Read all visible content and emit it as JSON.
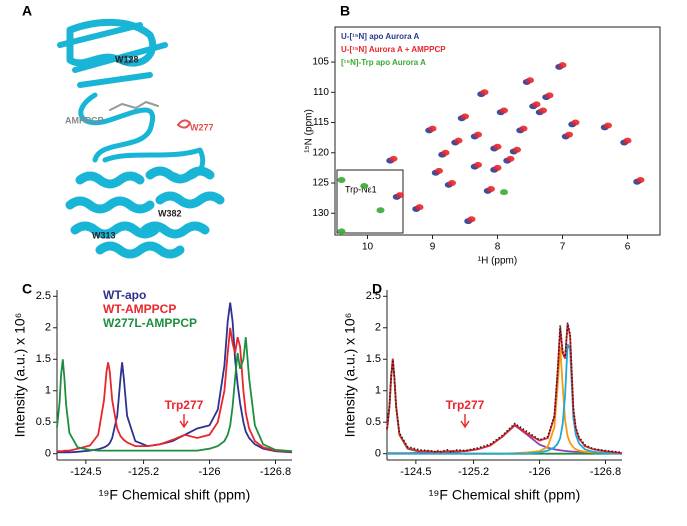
{
  "panel_labels": [
    "A",
    "B",
    "C",
    "D"
  ],
  "structure": {
    "labels": [
      "W128",
      "AMPPCP",
      "W277",
      "W382",
      "W313"
    ]
  },
  "chart_data": [
    {
      "type": "scatter",
      "xlabel": "¹H (ppm)",
      "ylabel": "¹⁵N (ppm)",
      "inset_label": "Trp-Nε1",
      "xlim": [
        10.5,
        5.5
      ],
      "xticks": [
        10,
        9,
        8,
        7,
        6
      ],
      "ylim": [
        133.6,
        99.2
      ],
      "yticks": [
        105,
        110,
        115,
        120,
        125,
        130
      ],
      "legend": "upper left",
      "series": [
        {
          "name": "U-[¹⁵N] apo Aurora A",
          "color": "#2b3a8f",
          "x": [
            7.05,
            7.55,
            8.25,
            7.35,
            6.85,
            6.35,
            6.95,
            9.05,
            8.65,
            8.05,
            7.65,
            7.85,
            8.35,
            8.95,
            8.75,
            8.15,
            9.55,
            9.25,
            8.45,
            5.85,
            7.95,
            8.55,
            7.25,
            8.35,
            7.75,
            8.85,
            8.05,
            7.45,
            9.65,
            6.05
          ],
          "values": [
            105.8,
            108.3,
            110.3,
            113.3,
            115.3,
            115.8,
            117.3,
            116.3,
            118.3,
            119.3,
            116.3,
            121.3,
            122.3,
            123.3,
            125.3,
            126.3,
            127.3,
            129.3,
            131.3,
            124.8,
            113.3,
            114.3,
            110.8,
            117.3,
            119.8,
            120.3,
            122.8,
            112.3,
            121.3,
            118.3
          ]
        },
        {
          "name": "U-[¹⁵N]  Aurora A + AMPPCP",
          "color": "#e8262b",
          "x": [
            7.0,
            7.5,
            8.2,
            7.3,
            6.8,
            6.3,
            6.9,
            9.0,
            8.6,
            8.0,
            7.6,
            7.8,
            8.3,
            8.9,
            8.7,
            8.1,
            9.5,
            9.2,
            8.4,
            5.8,
            7.9,
            8.5,
            7.2,
            8.3,
            7.7,
            8.8,
            8.0,
            7.4,
            9.6,
            6.0
          ],
          "values": [
            105.5,
            108,
            110,
            113,
            115,
            115.5,
            117,
            116,
            118,
            119,
            116,
            121,
            122,
            123,
            125,
            126,
            127,
            129,
            131,
            124.5,
            113,
            114,
            110.5,
            117,
            119.5,
            120,
            122.5,
            112,
            121,
            118
          ]
        },
        {
          "name": "[¹⁵N]-Trp apo Aurora A",
          "color": "#3aa935",
          "x": [
            10.4,
            10.05,
            9.8,
            10.4,
            7.9
          ],
          "values": [
            124.5,
            125.5,
            129.5,
            133,
            126.5
          ]
        }
      ]
    },
    {
      "type": "line",
      "xlabel": "¹⁹F Chemical shift (ppm)",
      "ylabel": "Intensity (a.u.) x 10⁶",
      "annotation": "Trp277",
      "legend": "upper left",
      "xlim": [
        -124.15,
        -127.0
      ],
      "xticks": [
        -124.5,
        -125.2,
        -126,
        -126.8
      ],
      "ylim": [
        -0.1,
        2.6
      ],
      "yticks": [
        0,
        0.5,
        1,
        1.5,
        2,
        2.5
      ],
      "x": [
        -124.15,
        -124.18,
        -124.2,
        -124.22,
        -124.24,
        -124.26,
        -124.3,
        -124.4,
        -124.55,
        -124.65,
        -124.72,
        -124.75,
        -124.77,
        -124.79,
        -124.82,
        -124.88,
        -124.92,
        -124.94,
        -124.96,
        -125.0,
        -125.1,
        -125.25,
        -125.4,
        -125.55,
        -125.7,
        -125.85,
        -126.0,
        -126.1,
        -126.18,
        -126.22,
        -126.25,
        -126.28,
        -126.31,
        -126.34,
        -126.37,
        -126.41,
        -126.44,
        -126.48,
        -126.55,
        -126.65,
        -126.8,
        -127.0
      ],
      "series": [
        {
          "name": "WT-apo",
          "color": "#2e3192",
          "values": [
            0.02,
            0.02,
            0.02,
            0.02,
            0.02,
            0.02,
            0.02,
            0.03,
            0.05,
            0.07,
            0.1,
            0.12,
            0.14,
            0.17,
            0.25,
            0.6,
            1.2,
            1.45,
            1.2,
            0.6,
            0.2,
            0.12,
            0.15,
            0.2,
            0.3,
            0.4,
            0.45,
            0.7,
            1.4,
            2.1,
            2.4,
            2.1,
            1.5,
            1.1,
            0.8,
            0.5,
            0.35,
            0.25,
            0.15,
            0.08,
            0.04,
            0.02
          ]
        },
        {
          "name": "WT-AMPPCP",
          "color": "#e8262b",
          "values": [
            0.04,
            0.04,
            0.04,
            0.04,
            0.05,
            0.05,
            0.05,
            0.08,
            0.13,
            0.3,
            0.85,
            1.3,
            1.45,
            1.3,
            0.85,
            0.4,
            0.28,
            0.25,
            0.22,
            0.18,
            0.12,
            0.12,
            0.15,
            0.22,
            0.3,
            0.25,
            0.3,
            0.5,
            1.0,
            1.6,
            2.0,
            1.75,
            1.6,
            1.85,
            1.7,
            1.0,
            0.65,
            0.4,
            0.2,
            0.1,
            0.05,
            0.03
          ]
        },
        {
          "name": "W277L-AMPPCP",
          "color": "#1e8e3e",
          "values": [
            0.42,
            0.8,
            1.25,
            1.5,
            1.2,
            0.78,
            0.33,
            0.1,
            0.06,
            0.05,
            0.05,
            0.05,
            0.05,
            0.05,
            0.05,
            0.05,
            0.05,
            0.05,
            0.05,
            0.05,
            0.05,
            0.05,
            0.05,
            0.05,
            0.05,
            0.05,
            0.08,
            0.12,
            0.2,
            0.3,
            0.45,
            0.75,
            1.2,
            1.6,
            1.35,
            1.5,
            1.85,
            1.2,
            0.45,
            0.15,
            0.06,
            0.04
          ]
        }
      ]
    },
    {
      "type": "line",
      "xlabel": "¹⁹F Chemical shift (ppm)",
      "ylabel": "Intensity (a.u.) x 10⁶",
      "annotation": "Trp277",
      "xlim": [
        -124.15,
        -127.0
      ],
      "xticks": [
        -124.5,
        -125.2,
        -126,
        -126.8
      ],
      "ylim": [
        -0.1,
        2.6
      ],
      "yticks": [
        0,
        0.5,
        1,
        1.5,
        2,
        2.5
      ],
      "x": [
        -124.15,
        -124.18,
        -124.2,
        -124.22,
        -124.24,
        -124.26,
        -124.3,
        -124.4,
        -124.55,
        -124.65,
        -124.72,
        -124.75,
        -124.77,
        -124.79,
        -124.82,
        -124.88,
        -124.92,
        -124.94,
        -124.96,
        -125.0,
        -125.1,
        -125.25,
        -125.4,
        -125.55,
        -125.7,
        -125.85,
        -126.0,
        -126.1,
        -126.18,
        -126.22,
        -126.25,
        -126.28,
        -126.31,
        -126.34,
        -126.37,
        -126.41,
        -126.44,
        -126.48,
        -126.55,
        -126.65,
        -126.8,
        -127.0
      ],
      "series": [
        {
          "color": "#1e8e3e",
          "values": [
            0.37,
            0.75,
            1.2,
            1.5,
            1.2,
            0.75,
            0.3,
            0.08,
            0.03,
            0.02,
            0.01,
            0.01,
            0.01,
            0.01,
            0.01,
            0.01,
            0.01,
            0.01,
            0.01,
            0.01,
            0,
            0,
            0,
            0,
            0,
            0,
            0,
            0,
            0,
            0,
            0,
            0,
            0,
            0,
            0,
            0,
            0,
            0,
            0,
            0,
            0,
            0
          ]
        },
        {
          "color": "#8e44ad",
          "values": [
            0.01,
            0.01,
            0.01,
            0.01,
            0.01,
            0.01,
            0.01,
            0.01,
            0.013,
            0.016,
            0.018,
            0.019,
            0.02,
            0.021,
            0.022,
            0.025,
            0.027,
            0.028,
            0.03,
            0.033,
            0.044,
            0.072,
            0.13,
            0.27,
            0.45,
            0.3,
            0.145,
            0.094,
            0.069,
            0.06,
            0.054,
            0.05,
            0.045,
            0.04,
            0.037,
            0.034,
            0.031,
            0.028,
            0.024,
            0.02,
            0.015,
            0.011
          ]
        },
        {
          "color": "#f39c12",
          "values": [
            0,
            0,
            0,
            0,
            0,
            0,
            0,
            0,
            0,
            0,
            0,
            0,
            0,
            0,
            0,
            0,
            0,
            0,
            0,
            0,
            0,
            0,
            0,
            0,
            0.01,
            0.02,
            0.04,
            0.11,
            0.42,
            1.09,
            1.7,
            1.09,
            0.53,
            0.28,
            0.17,
            0.1,
            0.07,
            0.05,
            0.03,
            0.02,
            0.01,
            0
          ]
        },
        {
          "color": "#1fa9d6",
          "values": [
            0,
            0,
            0,
            0,
            0,
            0,
            0,
            0,
            0,
            0,
            0,
            0,
            0,
            0,
            0,
            0,
            0,
            0,
            0,
            0,
            0,
            0,
            0,
            0,
            0,
            0,
            0.02,
            0.05,
            0.1,
            0.16,
            0.25,
            0.46,
            0.93,
            1.74,
            1.66,
            0.56,
            0.3,
            0.16,
            0.07,
            0.03,
            0.01,
            0
          ]
        },
        {
          "color": "#e8262b",
          "values": [
            0.38,
            0.76,
            1.21,
            1.51,
            1.21,
            0.76,
            0.31,
            0.09,
            0.04,
            0.04,
            0.03,
            0.03,
            0.03,
            0.03,
            0.03,
            0.04,
            0.04,
            0.04,
            0.04,
            0.04,
            0.04,
            0.07,
            0.13,
            0.27,
            0.46,
            0.32,
            0.21,
            0.25,
            0.59,
            1.31,
            2.0,
            1.6,
            1.51,
            2.06,
            1.87,
            0.69,
            0.4,
            0.24,
            0.12,
            0.07,
            0.04,
            0.01
          ]
        },
        {
          "color": "#222222",
          "line_style": "dotted",
          "values": [
            0.4,
            0.78,
            1.24,
            1.49,
            1.19,
            0.74,
            0.33,
            0.11,
            0.06,
            0.05,
            0.04,
            0.02,
            0.05,
            0.03,
            0.04,
            0.06,
            0.03,
            0.05,
            0.04,
            0.06,
            0.05,
            0.09,
            0.15,
            0.29,
            0.48,
            0.35,
            0.22,
            0.27,
            0.61,
            1.34,
            2.04,
            1.63,
            1.54,
            2.08,
            1.9,
            0.72,
            0.42,
            0.26,
            0.14,
            0.08,
            0.05,
            0.02
          ]
        }
      ]
    }
  ]
}
